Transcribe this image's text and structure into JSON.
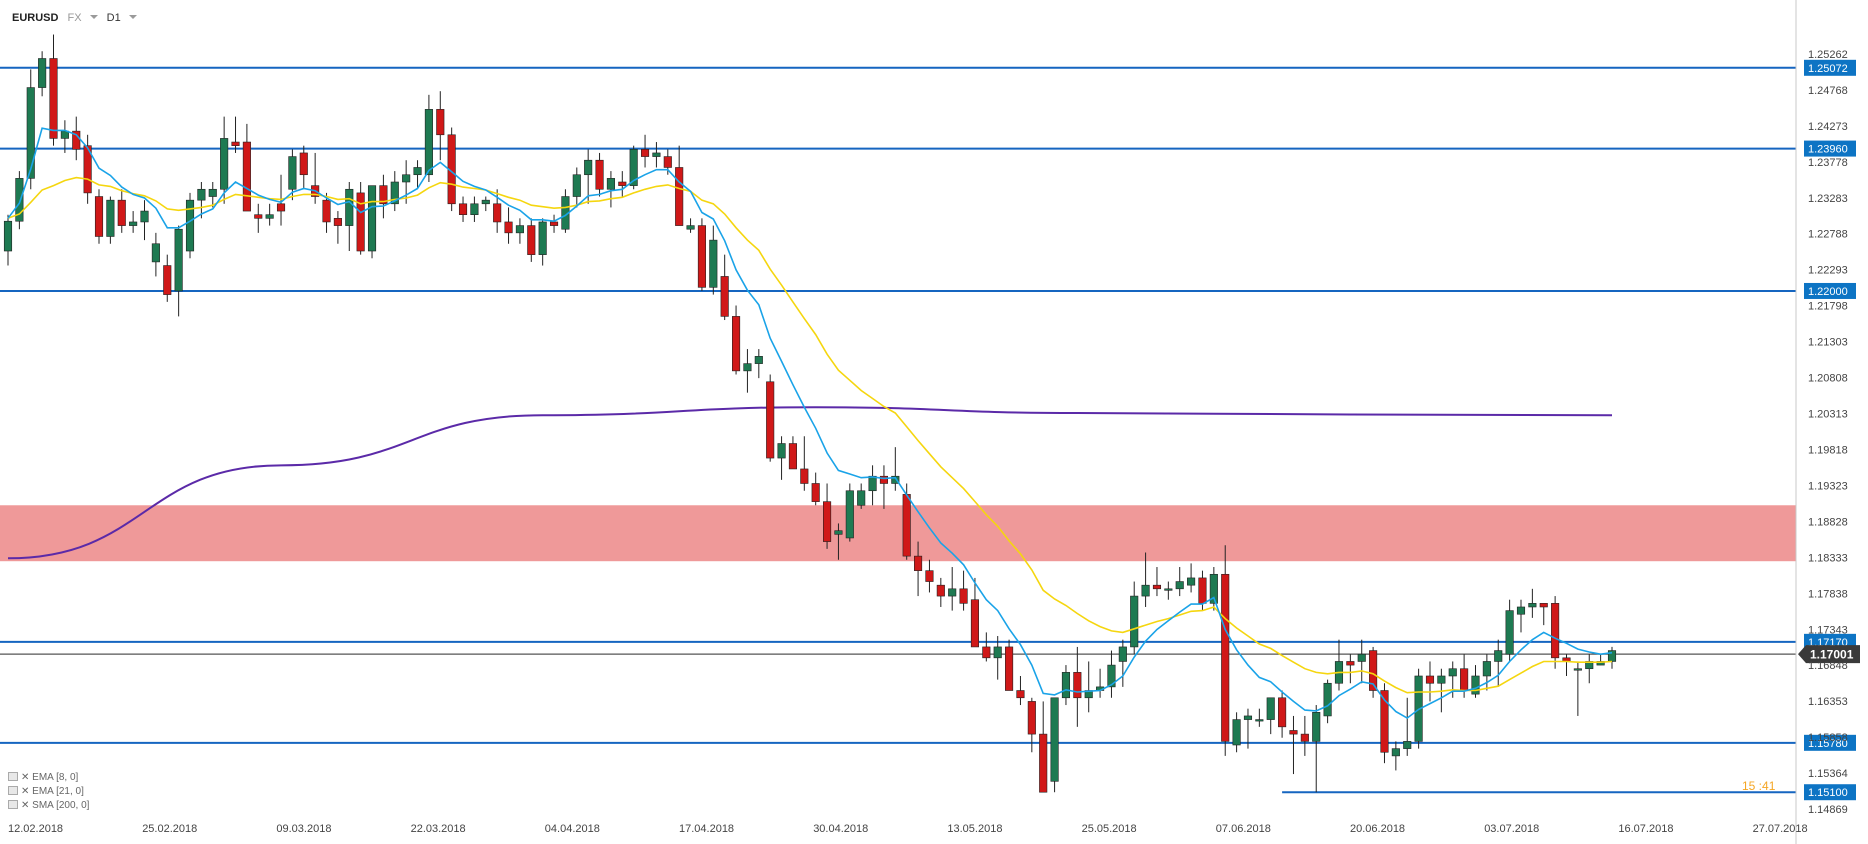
{
  "header": {
    "symbol": "EURUSD",
    "market": "FX",
    "timeframe": "D1"
  },
  "indicators": [
    {
      "label": "EMA [8, 0]",
      "color": "#1aa3e8"
    },
    {
      "label": "EMA [21, 0]",
      "color": "#f5d60f"
    },
    {
      "label": "SMA [200, 0]",
      "color": "#5b2aa8"
    }
  ],
  "colors": {
    "bull": "#1e7a52",
    "bear": "#d01818",
    "level": "#1565c0",
    "zone": "#ef9999",
    "tag": "#0d74c4"
  },
  "chart_data": {
    "type": "candlestick",
    "y_ticks": [
      "1.25262",
      "1.24768",
      "1.24273",
      "1.23778",
      "1.23283",
      "1.22788",
      "1.22293",
      "1.21798",
      "1.21303",
      "1.20808",
      "1.20313",
      "1.19818",
      "1.19323",
      "1.18828",
      "1.18333",
      "1.17838",
      "1.17343",
      "1.16848",
      "1.16353",
      "1.15858",
      "1.15364",
      "1.14869"
    ],
    "ylim": [
      1.14869,
      1.25262
    ],
    "x_ticks": [
      "12.02.2018",
      "25.02.2018",
      "09.03.2018",
      "22.03.2018",
      "04.04.2018",
      "17.04.2018",
      "30.04.2018",
      "13.05.2018",
      "25.05.2018",
      "07.06.2018",
      "20.06.2018",
      "03.07.2018",
      "16.07.2018",
      "27.07.2018"
    ],
    "current_price": "1.17001",
    "horizontal_levels": [
      "1.25072",
      "1.23960",
      "1.22000",
      "1.17170",
      "1.15780",
      "1.15100"
    ],
    "resistance_zone": [
      1.1828,
      1.1905
    ],
    "partial_label": "15 :41",
    "candles": [
      [
        1.2255,
        1.2305,
        1.2235,
        1.2296
      ],
      [
        1.2296,
        1.2365,
        1.2285,
        1.2355
      ],
      [
        1.2355,
        1.2505,
        1.234,
        1.248
      ],
      [
        1.248,
        1.253,
        1.2468,
        1.252
      ],
      [
        1.252,
        1.2553,
        1.24,
        1.241
      ],
      [
        1.241,
        1.2435,
        1.239,
        1.242
      ],
      [
        1.242,
        1.244,
        1.238,
        1.2395
      ],
      [
        1.24,
        1.2415,
        1.232,
        1.2335
      ],
      [
        1.233,
        1.234,
        1.2265,
        1.2275
      ],
      [
        1.2275,
        1.233,
        1.2265,
        1.2325
      ],
      [
        1.2325,
        1.234,
        1.228,
        1.229
      ],
      [
        1.229,
        1.231,
        1.228,
        1.2295
      ],
      [
        1.2295,
        1.2325,
        1.227,
        1.231
      ],
      [
        1.224,
        1.228,
        1.222,
        1.2265
      ],
      [
        1.2235,
        1.225,
        1.2185,
        1.2195
      ],
      [
        1.22,
        1.229,
        1.2165,
        1.2285
      ],
      [
        1.2255,
        1.2335,
        1.2245,
        1.2325
      ],
      [
        1.2325,
        1.235,
        1.23,
        1.234
      ],
      [
        1.233,
        1.235,
        1.2315,
        1.234
      ],
      [
        1.234,
        1.244,
        1.232,
        1.241
      ],
      [
        1.2405,
        1.244,
        1.239,
        1.24
      ],
      [
        1.2405,
        1.243,
        1.2315,
        1.231
      ],
      [
        1.2305,
        1.232,
        1.228,
        1.23
      ],
      [
        1.23,
        1.232,
        1.229,
        1.2305
      ],
      [
        1.232,
        1.236,
        1.229,
        1.231
      ],
      [
        1.234,
        1.2395,
        1.2325,
        1.2385
      ],
      [
        1.239,
        1.24,
        1.234,
        1.236
      ],
      [
        1.2345,
        1.239,
        1.232,
        1.233
      ],
      [
        1.2325,
        1.2335,
        1.228,
        1.2295
      ],
      [
        1.23,
        1.231,
        1.2265,
        1.229
      ],
      [
        1.229,
        1.235,
        1.2255,
        1.234
      ],
      [
        1.2335,
        1.235,
        1.225,
        1.2255
      ],
      [
        1.2255,
        1.234,
        1.2245,
        1.2345
      ],
      [
        1.2345,
        1.236,
        1.23,
        1.232
      ],
      [
        1.232,
        1.2365,
        1.231,
        1.235
      ],
      [
        1.235,
        1.238,
        1.232,
        1.236
      ],
      [
        1.236,
        1.238,
        1.234,
        1.237
      ],
      [
        1.236,
        1.247,
        1.235,
        1.245
      ],
      [
        1.245,
        1.2475,
        1.238,
        1.2415
      ],
      [
        1.2415,
        1.2425,
        1.231,
        1.232
      ],
      [
        1.232,
        1.233,
        1.2295,
        1.2305
      ],
      [
        1.2305,
        1.233,
        1.2295,
        1.232
      ],
      [
        1.232,
        1.233,
        1.231,
        1.2325
      ],
      [
        1.232,
        1.234,
        1.228,
        1.2295
      ],
      [
        1.2295,
        1.2315,
        1.2265,
        1.228
      ],
      [
        1.228,
        1.23,
        1.2265,
        1.229
      ],
      [
        1.229,
        1.23,
        1.224,
        1.225
      ],
      [
        1.225,
        1.23,
        1.2235,
        1.2295
      ],
      [
        1.2295,
        1.2305,
        1.228,
        1.229
      ],
      [
        1.2285,
        1.234,
        1.228,
        1.233
      ],
      [
        1.233,
        1.237,
        1.2315,
        1.236
      ],
      [
        1.236,
        1.2395,
        1.232,
        1.238
      ],
      [
        1.238,
        1.239,
        1.233,
        1.234
      ],
      [
        1.234,
        1.2365,
        1.2315,
        1.2355
      ],
      [
        1.235,
        1.2365,
        1.233,
        1.2345
      ],
      [
        1.2345,
        1.24,
        1.234,
        1.2395
      ],
      [
        1.2395,
        1.2415,
        1.237,
        1.2385
      ],
      [
        1.2385,
        1.2405,
        1.237,
        1.239
      ],
      [
        1.2385,
        1.2395,
        1.236,
        1.237
      ],
      [
        1.237,
        1.24,
        1.23,
        1.229
      ],
      [
        1.2285,
        1.23,
        1.228,
        1.229
      ],
      [
        1.229,
        1.23,
        1.22,
        1.2205
      ],
      [
        1.2205,
        1.229,
        1.2195,
        1.227
      ],
      [
        1.222,
        1.225,
        1.216,
        1.2165
      ],
      [
        1.2165,
        1.218,
        1.2085,
        1.209
      ],
      [
        1.209,
        1.212,
        1.206,
        1.21
      ],
      [
        1.21,
        1.212,
        1.208,
        1.211
      ],
      [
        1.2075,
        1.2085,
        1.1965,
        1.197
      ],
      [
        1.197,
        1.2,
        1.194,
        1.199
      ],
      [
        1.199,
        1.2,
        1.1955,
        1.1955
      ],
      [
        1.1955,
        1.2,
        1.1925,
        1.1935
      ],
      [
        1.1935,
        1.195,
        1.1905,
        1.191
      ],
      [
        1.191,
        1.1935,
        1.1845,
        1.1855
      ],
      [
        1.1865,
        1.188,
        1.183,
        1.187
      ],
      [
        1.186,
        1.1935,
        1.1855,
        1.1925
      ],
      [
        1.1905,
        1.1935,
        1.19,
        1.1925
      ],
      [
        1.1925,
        1.196,
        1.1905,
        1.1945
      ],
      [
        1.1945,
        1.196,
        1.19,
        1.1935
      ],
      [
        1.1935,
        1.1985,
        1.1925,
        1.1945
      ],
      [
        1.192,
        1.1935,
        1.183,
        1.1835
      ],
      [
        1.1835,
        1.1855,
        1.178,
        1.1815
      ],
      [
        1.1815,
        1.183,
        1.1785,
        1.18
      ],
      [
        1.1795,
        1.1805,
        1.1765,
        1.178
      ],
      [
        1.178,
        1.182,
        1.176,
        1.179
      ],
      [
        1.179,
        1.1815,
        1.176,
        1.177
      ],
      [
        1.1775,
        1.1805,
        1.1715,
        1.171
      ],
      [
        1.171,
        1.173,
        1.169,
        1.1695
      ],
      [
        1.1695,
        1.1725,
        1.1665,
        1.171
      ],
      [
        1.171,
        1.172,
        1.165,
        1.165
      ],
      [
        1.165,
        1.167,
        1.163,
        1.164
      ],
      [
        1.1635,
        1.164,
        1.1565,
        1.159
      ],
      [
        1.159,
        1.1635,
        1.1515,
        1.151
      ],
      [
        1.1525,
        1.164,
        1.151,
        1.164
      ],
      [
        1.164,
        1.1685,
        1.163,
        1.1675
      ],
      [
        1.1675,
        1.171,
        1.16,
        1.164
      ],
      [
        1.164,
        1.169,
        1.162,
        1.165
      ],
      [
        1.165,
        1.168,
        1.164,
        1.1655
      ],
      [
        1.1655,
        1.1705,
        1.164,
        1.1685
      ],
      [
        1.169,
        1.172,
        1.1655,
        1.171
      ],
      [
        1.171,
        1.18,
        1.17,
        1.178
      ],
      [
        1.178,
        1.184,
        1.1765,
        1.1795
      ],
      [
        1.1795,
        1.182,
        1.178,
        1.179
      ],
      [
        1.179,
        1.18,
        1.1775,
        1.179
      ],
      [
        1.179,
        1.182,
        1.178,
        1.18
      ],
      [
        1.1795,
        1.1825,
        1.1785,
        1.1805
      ],
      [
        1.1805,
        1.1815,
        1.176,
        1.177
      ],
      [
        1.177,
        1.182,
        1.176,
        1.181
      ],
      [
        1.181,
        1.185,
        1.156,
        1.158
      ],
      [
        1.1575,
        1.162,
        1.1565,
        1.161
      ],
      [
        1.161,
        1.1625,
        1.157,
        1.1615
      ],
      [
        1.161,
        1.1625,
        1.16,
        1.161
      ],
      [
        1.161,
        1.164,
        1.159,
        1.164
      ],
      [
        1.164,
        1.165,
        1.1585,
        1.16
      ],
      [
        1.1595,
        1.1615,
        1.1535,
        1.159
      ],
      [
        1.159,
        1.1615,
        1.156,
        1.158
      ],
      [
        1.158,
        1.163,
        1.151,
        1.162
      ],
      [
        1.1615,
        1.1665,
        1.1605,
        1.166
      ],
      [
        1.166,
        1.172,
        1.165,
        1.169
      ],
      [
        1.169,
        1.17,
        1.166,
        1.1685
      ],
      [
        1.169,
        1.172,
        1.166,
        1.17
      ],
      [
        1.1705,
        1.171,
        1.164,
        1.165
      ],
      [
        1.165,
        1.166,
        1.155,
        1.1565
      ],
      [
        1.156,
        1.158,
        1.154,
        1.157
      ],
      [
        1.157,
        1.164,
        1.156,
        1.158
      ],
      [
        1.158,
        1.168,
        1.157,
        1.167
      ],
      [
        1.167,
        1.169,
        1.1635,
        1.166
      ],
      [
        1.166,
        1.168,
        1.162,
        1.167
      ],
      [
        1.167,
        1.169,
        1.164,
        1.168
      ],
      [
        1.168,
        1.17,
        1.164,
        1.165
      ],
      [
        1.1645,
        1.1685,
        1.164,
        1.167
      ],
      [
        1.167,
        1.17,
        1.165,
        1.169
      ],
      [
        1.169,
        1.172,
        1.1655,
        1.1705
      ],
      [
        1.17,
        1.1775,
        1.169,
        1.176
      ],
      [
        1.1755,
        1.1775,
        1.173,
        1.1765
      ],
      [
        1.1765,
        1.179,
        1.175,
        1.177
      ],
      [
        1.177,
        1.177,
        1.174,
        1.1765
      ],
      [
        1.177,
        1.178,
        1.168,
        1.1695
      ],
      [
        1.1695,
        1.17,
        1.167,
        1.169
      ],
      [
        1.168,
        1.169,
        1.1615,
        1.168
      ],
      [
        1.168,
        1.17,
        1.166,
        1.169
      ],
      [
        1.1685,
        1.17,
        1.1685,
        1.169
      ],
      [
        1.169,
        1.171,
        1.168,
        1.1705
      ]
    ],
    "series": [
      {
        "name": "EMA [8, 0]",
        "values": [
          1.23,
          1.2321,
          1.2368,
          1.2424,
          1.2421,
          1.2421,
          1.2415,
          1.2397,
          1.2369,
          1.2359,
          1.2343,
          1.2333,
          1.2328,
          1.2314,
          1.2287,
          1.2287,
          1.2296,
          1.2306,
          1.2313,
          1.2335,
          1.235,
          1.2341,
          1.2332,
          1.2326,
          1.2322,
          1.2336,
          1.2341,
          1.2338,
          1.2328,
          1.2319,
          1.2323,
          1.2308,
          1.2316,
          1.2317,
          1.2324,
          1.2332,
          1.2341,
          1.2366,
          1.2377,
          1.2364,
          1.2351,
          1.2344,
          1.2339,
          1.2329,
          1.2318,
          1.2311,
          1.2298,
          1.2298,
          1.2296,
          1.2304,
          1.2317,
          1.2331,
          1.2333,
          1.2338,
          1.234,
          1.2352,
          1.236,
          1.2367,
          1.2367,
          1.235,
          1.2337,
          1.2308,
          1.2299,
          1.2269,
          1.2229,
          1.2201,
          1.2181,
          1.2135,
          1.2103,
          1.2071,
          1.204,
          1.2011,
          1.1977,
          1.1953,
          1.1948,
          1.1943,
          1.1944,
          1.1942,
          1.1943,
          1.1919,
          1.1896,
          1.1874,
          1.1853,
          1.1839,
          1.1823,
          1.1798,
          1.1775,
          1.176,
          1.1735,
          1.1713,
          1.1685,
          1.1646,
          1.1644,
          1.1651,
          1.1648,
          1.1649,
          1.165,
          1.1658,
          1.167,
          1.1696,
          1.1718,
          1.1734,
          1.1746,
          1.1758,
          1.1769,
          1.1769,
          1.1778,
          1.1734,
          1.1706,
          1.1685,
          1.1668,
          1.1662,
          1.1648,
          1.1635,
          1.1623,
          1.1622,
          1.1629,
          1.1643,
          1.1652,
          1.1662,
          1.1659,
          1.1637,
          1.1621,
          1.1612,
          1.1624,
          1.1632,
          1.164,
          1.1649,
          1.1649,
          1.1653,
          1.1661,
          1.1671,
          1.169,
          1.1706,
          1.172,
          1.173,
          1.1722,
          1.1715,
          1.1707,
          1.1703,
          1.17,
          1.1702
        ]
      },
      {
        "name": "EMA [21, 0]",
        "values": [
          1.23,
          1.2306,
          1.2322,
          1.2339,
          1.2345,
          1.2352,
          1.2356,
          1.2354,
          1.2346,
          1.2344,
          1.2338,
          1.2334,
          1.2331,
          1.2324,
          1.2313,
          1.2311,
          1.2313,
          1.2315,
          1.2318,
          1.2326,
          1.2333,
          1.2331,
          1.2329,
          1.2327,
          1.2326,
          1.233,
          1.2333,
          1.2333,
          1.233,
          1.2326,
          1.2327,
          1.232,
          1.2323,
          1.2323,
          1.2326,
          1.2328,
          1.2332,
          1.2342,
          1.2349,
          1.2347,
          1.2343,
          1.2341,
          1.2339,
          1.2334,
          1.2329,
          1.2325,
          1.2318,
          1.2316,
          1.2314,
          1.2315,
          1.2318,
          1.2323,
          1.2324,
          1.2327,
          1.2329,
          1.2335,
          1.234,
          1.2344,
          1.2346,
          1.2341,
          1.2337,
          1.2325,
          1.232,
          1.2306,
          1.2287,
          1.227,
          1.2256,
          1.223,
          1.2208,
          1.2185,
          1.2162,
          1.214,
          1.2113,
          1.2091,
          1.2077,
          1.2063,
          1.2052,
          1.2041,
          1.2032,
          1.2013,
          1.1994,
          1.1976,
          1.1958,
          1.1943,
          1.1928,
          1.191,
          1.1892,
          1.1876,
          1.1856,
          1.1838,
          1.1816,
          1.1788,
          1.1776,
          1.1767,
          1.1756,
          1.1746,
          1.1738,
          1.1732,
          1.173,
          1.1735,
          1.174,
          1.1745,
          1.1749,
          1.1754,
          1.1759,
          1.176,
          1.1765,
          1.1749,
          1.1736,
          1.1725,
          1.1714,
          1.1708,
          1.1698,
          1.1689,
          1.168,
          1.1675,
          1.1673,
          1.1675,
          1.1675,
          1.1677,
          1.1673,
          1.1663,
          1.1654,
          1.1647,
          1.1648,
          1.1648,
          1.1649,
          1.1651,
          1.165,
          1.165,
          1.1653,
          1.1656,
          1.1665,
          1.1674,
          1.1683,
          1.169,
          1.169,
          1.169,
          1.1689,
          1.1689,
          1.1689,
          1.169
        ]
      },
      {
        "name": "SMA [200, 0]",
        "values": [
          1.1832,
          1.196,
          1.2029,
          1.204,
          1.2032,
          1.203,
          1.2029
        ]
      }
    ]
  }
}
